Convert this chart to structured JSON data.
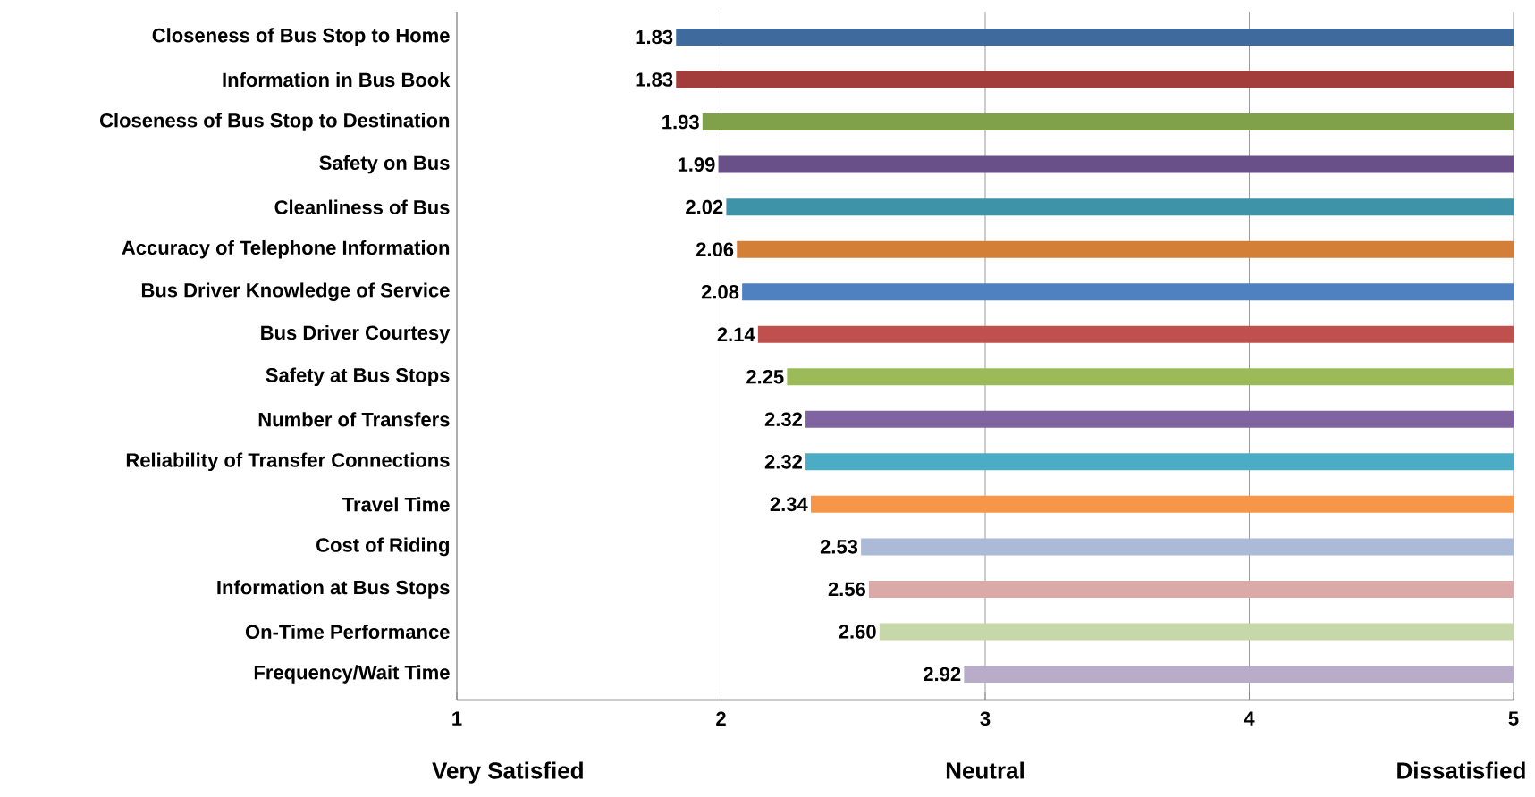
{
  "chart_data": {
    "type": "bar",
    "orientation": "horizontal",
    "categories": [
      "Closeness of Bus Stop to Home",
      "Information in Bus Book",
      "Closeness of Bus Stop to Destination",
      "Safety on Bus",
      "Cleanliness of Bus",
      "Accuracy of Telephone Information",
      "Bus Driver Knowledge of Service",
      "Bus Driver Courtesy",
      "Safety at Bus Stops",
      "Number of Transfers",
      "Reliability of Transfer Connections",
      "Travel Time",
      "Cost of Riding",
      "Information at Bus Stops",
      "On-Time Performance",
      "Frequency/Wait Time"
    ],
    "base": [
      5,
      5,
      5,
      5,
      5,
      5,
      5,
      5,
      5,
      5,
      5,
      5,
      5,
      5,
      5,
      5
    ],
    "values": [
      -3.17,
      -3.17,
      -3.07,
      -3.01,
      -2.98,
      -2.94,
      -2.92,
      -2.86,
      -2.75,
      -2.68,
      -2.68,
      -2.66,
      -2.47,
      -2.44,
      -2.4,
      -2.08
    ],
    "value_labels": [
      "1.83",
      "1.83",
      "1.93",
      "1.99",
      "2.02",
      "2.06",
      "2.08",
      "2.14",
      "2.25",
      "2.32",
      "2.32",
      "2.34",
      "2.53",
      "2.56",
      "2.60",
      "2.92"
    ],
    "colors": [
      "#3f6a9e",
      "#a33d3b",
      "#80a04a",
      "#6a5088",
      "#3f93a8",
      "#d37f38",
      "#4f81c0",
      "#c0504d",
      "#9bbb59",
      "#8064a2",
      "#4bacc6",
      "#f79646",
      "#aabad7",
      "#dba9a8",
      "#c6d8a9",
      "#b8acc9"
    ],
    "xlim": [
      1,
      5
    ],
    "xticks": [
      1,
      2,
      3,
      4,
      5
    ],
    "grid": "x",
    "annotations": [
      "Very Satisfied",
      "Neutral",
      "Dissatisfied"
    ]
  }
}
